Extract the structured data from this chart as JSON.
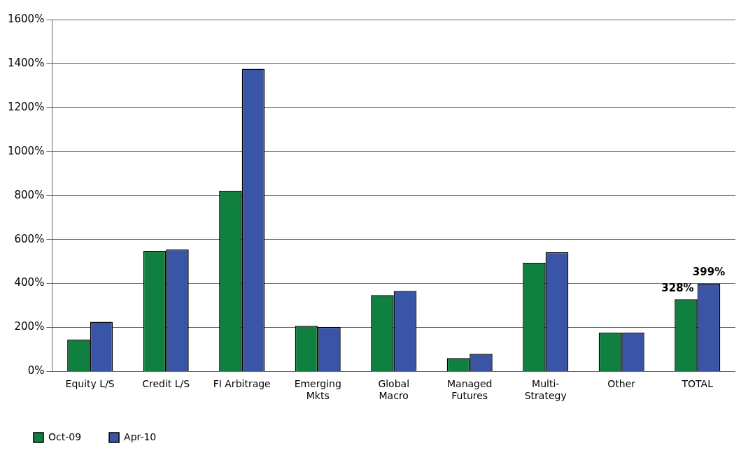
{
  "chart_data": {
    "type": "bar",
    "categories": [
      "Equity L/S",
      "Credit L/S",
      "FI Arbitrage",
      "Emerging Mkts",
      "Global Macro",
      "Managed Futures",
      "Multi-Strategy",
      "Other",
      "TOTAL"
    ],
    "series": [
      {
        "name": "Oct-09",
        "color": "#108040",
        "values": [
          145,
          548,
          821,
          207,
          347,
          61,
          494,
          177,
          328
        ],
        "value_labels": [
          null,
          null,
          null,
          null,
          null,
          null,
          null,
          null,
          "328%"
        ]
      },
      {
        "name": "Apr-10",
        "color": "#3a55a5",
        "values": [
          225,
          554,
          1376,
          202,
          366,
          80,
          542,
          177,
          399
        ],
        "value_labels": [
          null,
          null,
          null,
          null,
          null,
          null,
          null,
          null,
          "399%"
        ]
      }
    ],
    "ylim": [
      0,
      1600
    ],
    "yticks": [
      {
        "value": 0,
        "label": "0%"
      },
      {
        "value": 200,
        "label": "200%"
      },
      {
        "value": 400,
        "label": "400%"
      },
      {
        "value": 600,
        "label": "600%"
      },
      {
        "value": 800,
        "label": "800%"
      },
      {
        "value": 1000,
        "label": "1000%"
      },
      {
        "value": 1200,
        "label": "1200%"
      },
      {
        "value": 1400,
        "label": "1400%"
      },
      {
        "value": 1600,
        "label": "1600%"
      }
    ],
    "grid": "y",
    "legend": "bottom left"
  }
}
